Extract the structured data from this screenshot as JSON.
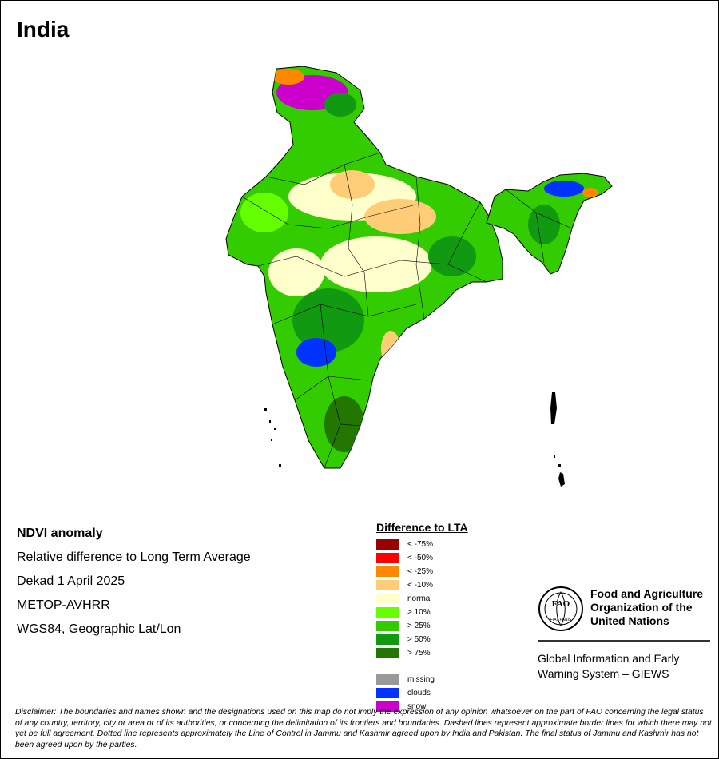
{
  "title": "India",
  "info": {
    "line1": "NDVI anomaly",
    "line2": "Relative difference to Long Term Average",
    "line3": "Dekad 1 April 2025",
    "line4": "METOP-AVHRR",
    "line5": "WGS84, Geographic Lat/Lon"
  },
  "legend": {
    "title": "Difference to LTA",
    "items": [
      {
        "label": "< -75%",
        "color": "#990000"
      },
      {
        "label": "< -50%",
        "color": "#ff0000"
      },
      {
        "label": "< -25%",
        "color": "#ff8800"
      },
      {
        "label": "< -10%",
        "color": "#ffcc77"
      },
      {
        "label": "normal",
        "color": "#ffffcc"
      },
      {
        "label": "> 10%",
        "color": "#66ff00"
      },
      {
        "label": "> 25%",
        "color": "#33cc00"
      },
      {
        "label": "> 50%",
        "color": "#119911"
      },
      {
        "label": "> 75%",
        "color": "#227700"
      }
    ],
    "extra": [
      {
        "label": "missing",
        "color": "#999999"
      },
      {
        "label": "clouds",
        "color": "#0033ff"
      },
      {
        "label": "snow",
        "color": "#cc00cc"
      }
    ]
  },
  "fao": {
    "logo_letters": "FAO",
    "logo_motto": "FIAT PANIS",
    "name_line1": "Food and Agriculture",
    "name_line2": "Organization of the",
    "name_line3": "United Nations",
    "giews_line1": "Global Information and Early",
    "giews_line2": "Warning System – GIEWS"
  },
  "disclaimer": "Disclaimer: The boundaries and names shown and the designations used on this map do not imply the expression of any opinion whatsoever on the part of FAO concerning the legal status of any country, territory, city or area or of its authorities, or concerning the delimitation of its frontiers and boundaries. Dashed lines represent approximate border lines for which there may not yet be full agreement. Dotted line represents approximately the Line of Control in Jammu and Kashmir agreed upon by India and Pakistan. The final status of Jammu and Kashmir has not been agreed upon by the parties.",
  "colors": {
    "map_base": "#33cc00",
    "map_dark": "#119911",
    "map_darkest": "#227700",
    "map_light": "#66ff00",
    "map_normal": "#ffffcc",
    "map_dry": "#ffcc77",
    "map_clouds": "#0033ff",
    "map_snow": "#cc00cc"
  }
}
